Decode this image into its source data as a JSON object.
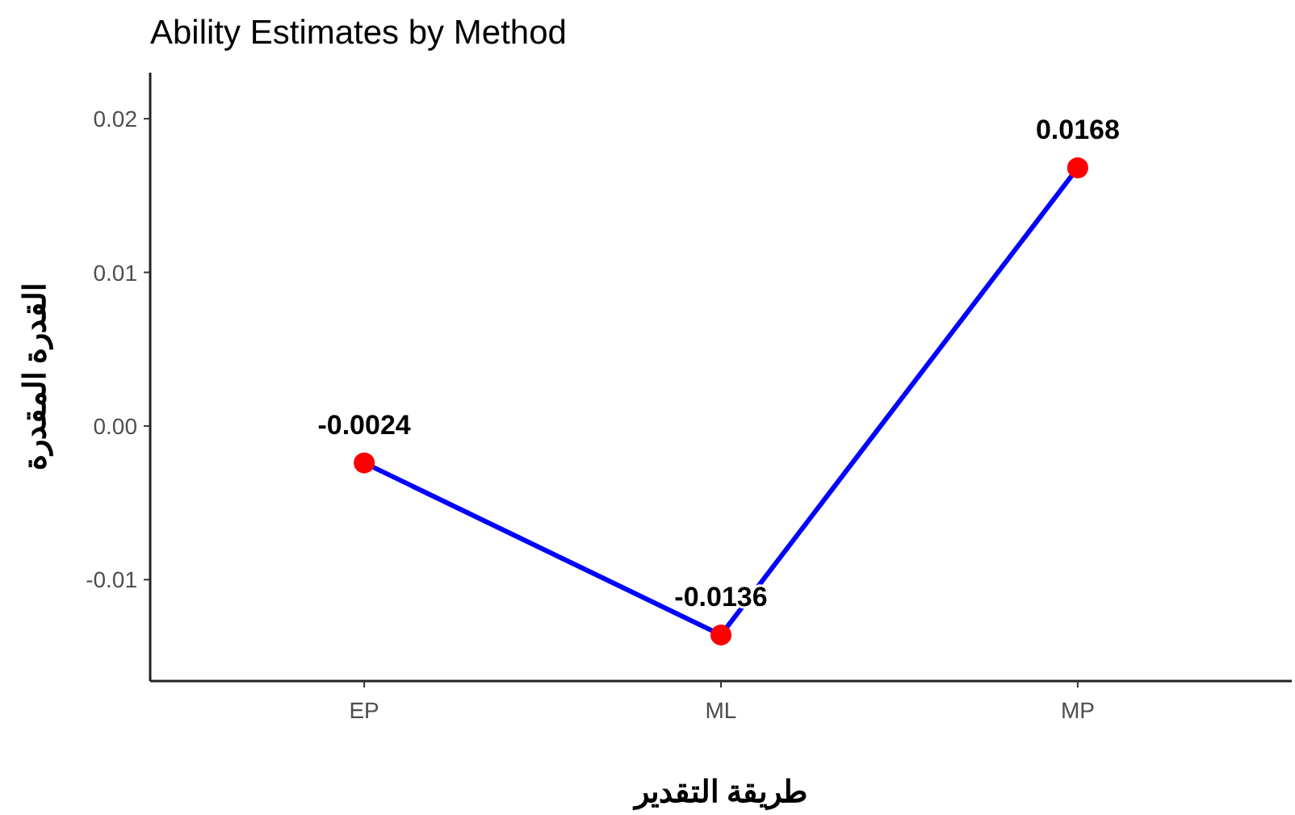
{
  "chart_data": {
    "type": "line",
    "title": "Ability Estimates by Method",
    "xlabel": "طريقة التقدير",
    "ylabel": "القدرة المقدرة",
    "categories": [
      "EP",
      "ML",
      "MP"
    ],
    "series": [
      {
        "color": "#0000ff",
        "colors": [
          "#ff0000",
          "#ff0000",
          "#ff0000"
        ],
        "values": [
          -0.0024,
          -0.0136,
          0.0168
        ]
      }
    ],
    "ylim": [
      -0.0166,
      0.023
    ],
    "yticks": [
      -0.01,
      {
        "value": 0,
        "label": "0.00"
      },
      0.01,
      0.02
    ],
    "data_labels": true,
    "marker": "circle",
    "line_style": "solid",
    "grid": false
  }
}
